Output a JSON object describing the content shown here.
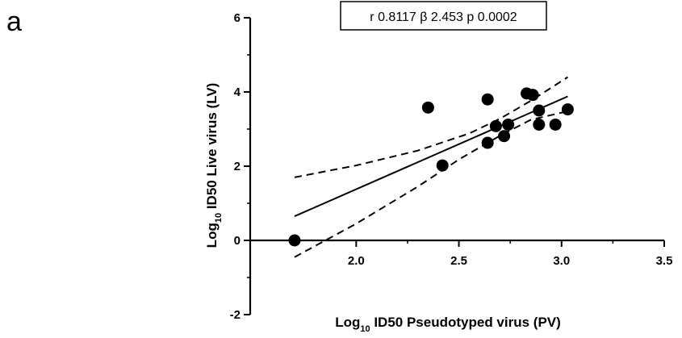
{
  "panel_label": "a",
  "chart_data": {
    "type": "scatter",
    "annotation": "r 0.8117 β 2.453 p 0.0002",
    "xlabel": {
      "base": "Log",
      "sub": "10",
      "rest": " ID50 Pseudotyped virus (PV)"
    },
    "ylabel": {
      "base": "Log",
      "sub": "10",
      "rest": " ID50 Live virus (LV)"
    },
    "xlim": [
      1.7,
      3.5
    ],
    "ylim": [
      -2,
      6
    ],
    "x_ticks": [
      {
        "value": 2.0,
        "label": "2.0"
      },
      {
        "value": 2.5,
        "label": "2.5"
      },
      {
        "value": 3.0,
        "label": "3.0"
      },
      {
        "value": 3.5,
        "label": "3.5"
      }
    ],
    "y_ticks": [
      {
        "value": -2,
        "label": "-2"
      },
      {
        "value": 0,
        "label": "0"
      },
      {
        "value": 2,
        "label": "2"
      },
      {
        "value": 4,
        "label": "4"
      },
      {
        "value": 6,
        "label": "6"
      }
    ],
    "points": [
      {
        "x": 1.7,
        "y": 0.0
      },
      {
        "x": 2.35,
        "y": 3.58
      },
      {
        "x": 2.42,
        "y": 2.02
      },
      {
        "x": 2.64,
        "y": 3.8
      },
      {
        "x": 2.64,
        "y": 2.63
      },
      {
        "x": 2.68,
        "y": 3.08
      },
      {
        "x": 2.72,
        "y": 2.81
      },
      {
        "x": 2.74,
        "y": 3.12
      },
      {
        "x": 2.83,
        "y": 3.96
      },
      {
        "x": 2.86,
        "y": 3.92
      },
      {
        "x": 2.89,
        "y": 3.5
      },
      {
        "x": 2.89,
        "y": 3.12
      },
      {
        "x": 2.97,
        "y": 3.12
      },
      {
        "x": 3.03,
        "y": 3.53
      }
    ],
    "regression": {
      "x": [
        1.7,
        3.03
      ],
      "y": [
        0.65,
        3.88
      ]
    },
    "ci_upper": {
      "x": [
        1.7,
        2.0,
        2.3,
        2.55,
        2.7,
        2.85,
        3.03
      ],
      "y": [
        1.7,
        2.02,
        2.42,
        2.88,
        3.28,
        3.76,
        4.4
      ]
    },
    "ci_lower": {
      "x": [
        1.7,
        2.0,
        2.3,
        2.5,
        2.7,
        2.85,
        3.03
      ],
      "y": [
        -0.45,
        0.45,
        1.45,
        2.18,
        2.82,
        3.25,
        3.48
      ]
    },
    "grid": false,
    "legend": "none"
  }
}
